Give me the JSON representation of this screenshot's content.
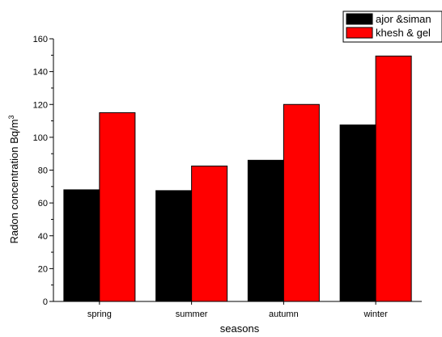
{
  "chart_data": {
    "type": "bar",
    "categories": [
      "spring",
      "summer",
      "autumn",
      "winter"
    ],
    "series": [
      {
        "name": "ajor &siman",
        "color": "#000000",
        "values": [
          68,
          67.5,
          86,
          107.5
        ]
      },
      {
        "name": "khesh & gel",
        "color": "#ff0000",
        "values": [
          115,
          82.5,
          120,
          149.5
        ]
      }
    ],
    "xlabel": "seasons",
    "ylabel_main": "Radon concentration Bq/m",
    "ylabel_sup": "3",
    "ylim": [
      0,
      160
    ],
    "yticks": [
      0,
      20,
      40,
      60,
      80,
      100,
      120,
      140,
      160
    ],
    "grid": false,
    "legend_position": "top-right"
  }
}
